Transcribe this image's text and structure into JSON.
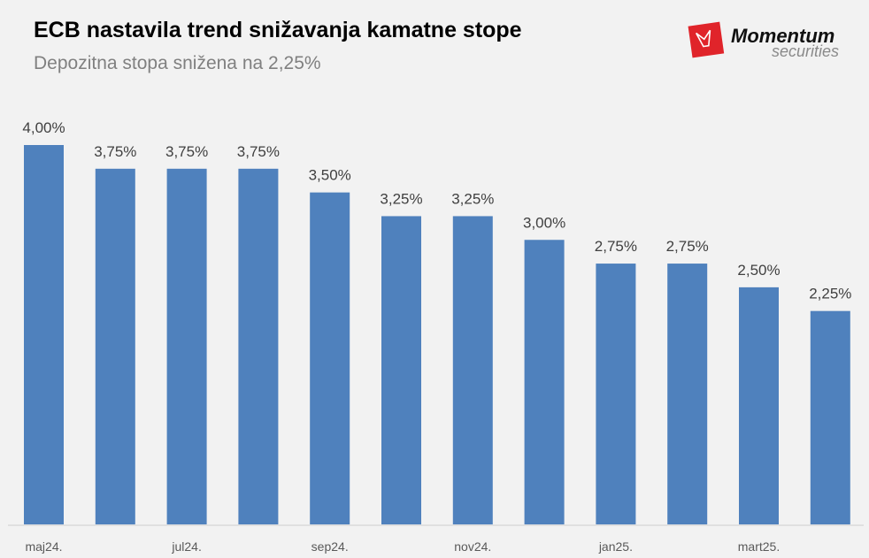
{
  "logo": {
    "name": "Momentum",
    "tagline": "securities",
    "color": "#e0242a"
  },
  "chart_data": {
    "type": "bar",
    "title": "ECB nastavila trend snižavanja kamatne stope",
    "subtitle": "Depozitna stopa snižena na 2,25%",
    "xlabel": "",
    "ylabel": "",
    "tick_labels": [
      "maj24.",
      "",
      "jul24.",
      "",
      "sep24.",
      "",
      "nov24.",
      "",
      "jan25.",
      "",
      "mart25.",
      ""
    ],
    "values": [
      4.0,
      3.75,
      3.75,
      3.75,
      3.5,
      3.25,
      3.25,
      3.0,
      2.75,
      2.75,
      2.5,
      2.25
    ],
    "data_labels": [
      "4,00%",
      "3,75%",
      "3,75%",
      "3,75%",
      "3,50%",
      "3,25%",
      "3,25%",
      "3,00%",
      "2,75%",
      "2,75%",
      "2,50%",
      "2,25%"
    ],
    "ylim": [
      0,
      4
    ],
    "grid": false,
    "bar_color": "#4f81bd"
  }
}
